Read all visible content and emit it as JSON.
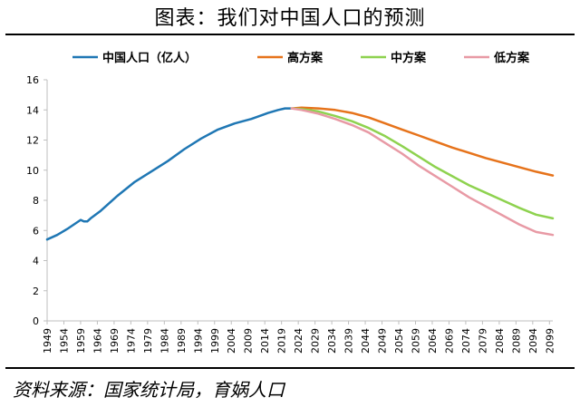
{
  "title": "图表：我们对中国人口的预测",
  "source": "资料来源：国家统计局，育娲人口",
  "colors": {
    "historical": "#1f77b4",
    "high": "#e6731b",
    "medium": "#8ed24f",
    "low": "#e89aa5",
    "axis": "#bfbfbf"
  },
  "chart_data": {
    "type": "line",
    "title": "",
    "xlabel": "",
    "ylabel": "",
    "ylim": [
      0,
      16
    ],
    "xlim": [
      1949,
      2100
    ],
    "yticks": [
      0,
      2,
      4,
      6,
      8,
      10,
      12,
      14,
      16
    ],
    "xticks": [
      1949,
      1954,
      1959,
      1964,
      1969,
      1974,
      1979,
      1984,
      1989,
      1994,
      1999,
      2004,
      2009,
      2014,
      2019,
      2024,
      2029,
      2034,
      2039,
      2044,
      2049,
      2054,
      2059,
      2064,
      2069,
      2074,
      2079,
      2084,
      2089,
      2094,
      2099
    ],
    "grid": false,
    "legend_position": "top",
    "series": [
      {
        "name": "中国人口（亿人）",
        "color_key": "historical",
        "x": [
          1949,
          1952,
          1955,
          1957,
          1959,
          1960,
          1961,
          1962,
          1965,
          1970,
          1975,
          1980,
          1985,
          1990,
          1995,
          2000,
          2005,
          2010,
          2015,
          2018,
          2020,
          2022
        ],
        "y": [
          5.4,
          5.7,
          6.1,
          6.4,
          6.7,
          6.6,
          6.6,
          6.8,
          7.3,
          8.3,
          9.2,
          9.9,
          10.6,
          11.4,
          12.1,
          12.7,
          13.1,
          13.4,
          13.8,
          14.0,
          14.1,
          14.1
        ]
      },
      {
        "name": "高方案",
        "color_key": "high",
        "x": [
          2022,
          2025,
          2030,
          2035,
          2040,
          2045,
          2050,
          2055,
          2060,
          2065,
          2070,
          2075,
          2080,
          2085,
          2090,
          2095,
          2100
        ],
        "y": [
          14.1,
          14.15,
          14.1,
          14.0,
          13.8,
          13.5,
          13.1,
          12.7,
          12.3,
          11.9,
          11.5,
          11.15,
          10.8,
          10.5,
          10.2,
          9.9,
          9.65
        ]
      },
      {
        "name": "中方案",
        "color_key": "medium",
        "x": [
          2022,
          2025,
          2030,
          2035,
          2040,
          2045,
          2050,
          2055,
          2060,
          2065,
          2070,
          2075,
          2080,
          2085,
          2090,
          2095,
          2100
        ],
        "y": [
          14.1,
          14.05,
          13.9,
          13.6,
          13.25,
          12.8,
          12.25,
          11.6,
          10.9,
          10.2,
          9.6,
          9.0,
          8.5,
          8.0,
          7.5,
          7.05,
          6.8
        ]
      },
      {
        "name": "低方案",
        "color_key": "low",
        "x": [
          2022,
          2025,
          2030,
          2035,
          2040,
          2045,
          2050,
          2055,
          2060,
          2065,
          2070,
          2075,
          2080,
          2085,
          2090,
          2095,
          2100
        ],
        "y": [
          14.1,
          14.0,
          13.75,
          13.4,
          13.0,
          12.5,
          11.8,
          11.1,
          10.3,
          9.6,
          8.9,
          8.2,
          7.6,
          7.0,
          6.4,
          5.9,
          5.7
        ]
      }
    ]
  }
}
